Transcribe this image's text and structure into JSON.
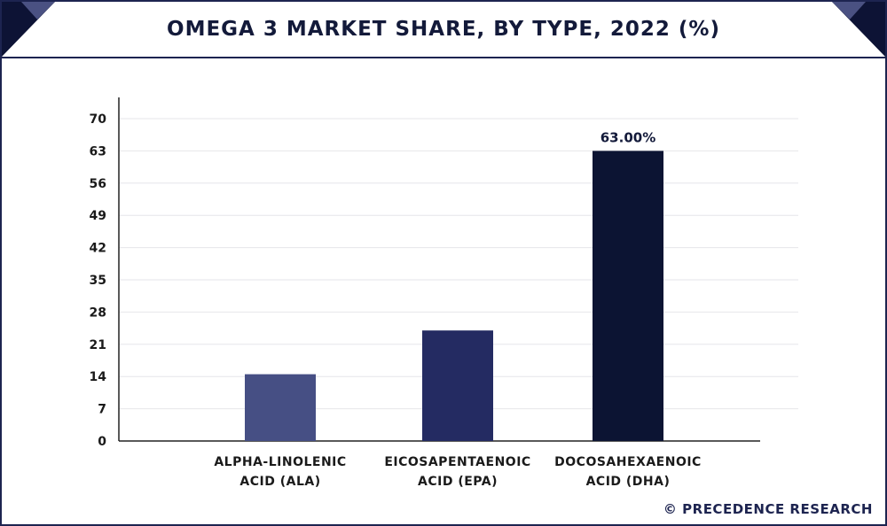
{
  "header": {
    "title": "OMEGA 3 MARKET SHARE, BY TYPE, 2022 (%)"
  },
  "footer": {
    "copyright": "© PRECEDENCE RESEARCH"
  },
  "colors": {
    "frame": "#1d2450",
    "corner_dark": "#0d1335",
    "corner_light": "#4a5182",
    "axis": "#222222",
    "grid": "#e6e6ea"
  },
  "chart_data": {
    "type": "bar",
    "categories": [
      [
        "ALPHA-LINOLENIC",
        "ACID (ALA)"
      ],
      [
        "EICOSAPENTAENOIC",
        "ACID (EPA)"
      ],
      [
        "DOCOSAHEXAENOIC",
        "ACID (DHA)"
      ]
    ],
    "values": [
      14.5,
      24,
      63
    ],
    "colors": [
      "#464f84",
      "#242b62",
      "#0c1433"
    ],
    "data_labels": [
      "",
      "",
      "63.00%"
    ],
    "yticks": [
      0,
      7,
      14,
      21,
      28,
      35,
      42,
      49,
      56,
      63,
      70
    ],
    "ylim": [
      0,
      70
    ],
    "title": "OMEGA 3 MARKET SHARE, BY TYPE, 2022 (%)",
    "xlabel": "",
    "ylabel": "",
    "grid": true,
    "legend": "none"
  }
}
